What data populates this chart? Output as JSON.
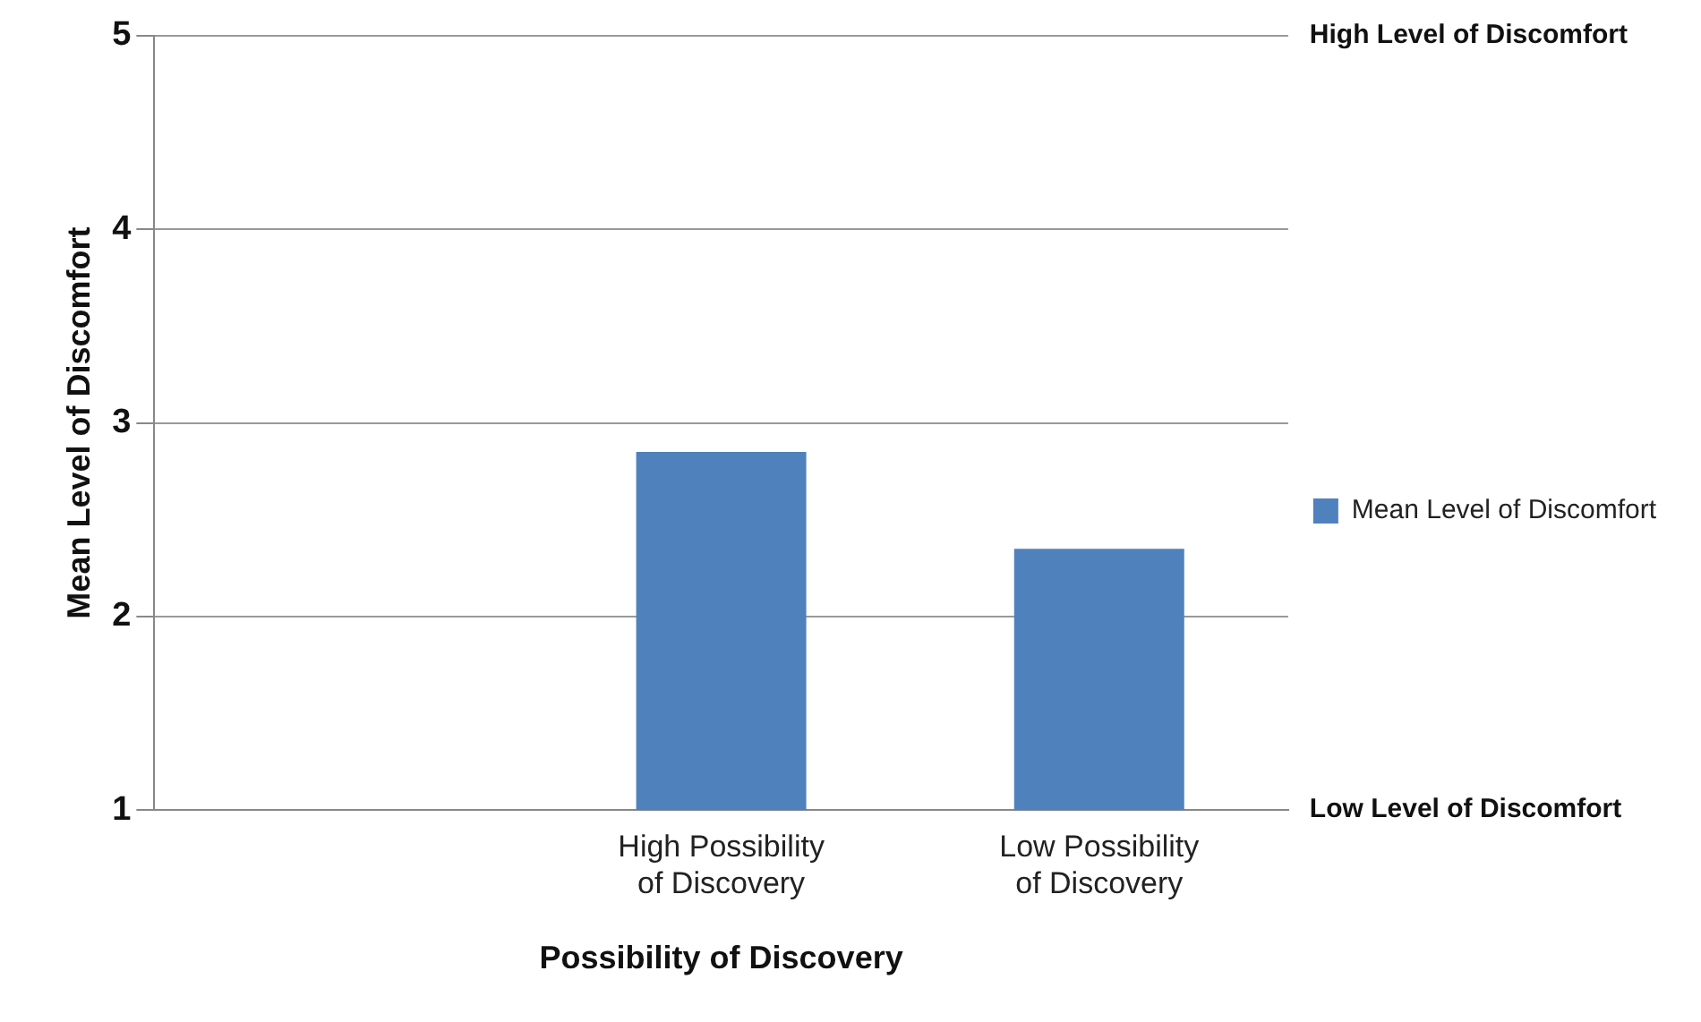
{
  "chart_data": {
    "type": "bar",
    "xlabel": "Possibility of Discovery",
    "ylabel": "Mean Level of Discomfort",
    "categories": [
      null,
      "High Possibility of Discovery",
      "Low Possibility of Discovery"
    ],
    "series": [
      {
        "name": "Mean Level of Discomfort",
        "color": "#4f81bd",
        "values": [
          null,
          2.85,
          2.35
        ]
      }
    ],
    "ylim": [
      1,
      5
    ],
    "yticks": [
      1,
      2,
      3,
      4,
      5
    ],
    "annotations": [
      "High Level of Discomfort",
      "Low Level of Discomfort"
    ],
    "grid": "y",
    "legend": "right"
  }
}
